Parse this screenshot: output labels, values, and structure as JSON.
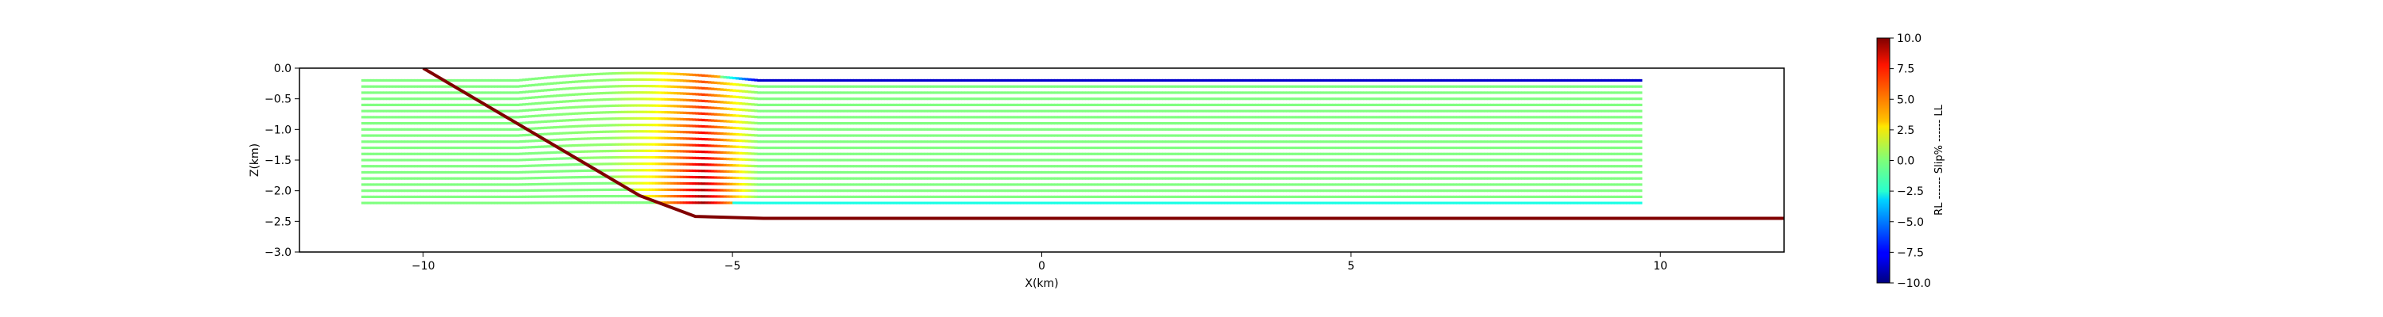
{
  "chart_data": {
    "type": "scatter",
    "title": "",
    "xlabel": "X(km)",
    "ylabel": "Z(km)",
    "xlim": [
      -12,
      12
    ],
    "ylim": [
      -3.0,
      0.0
    ],
    "x_ticks": [
      -10,
      -5,
      0,
      5,
      10
    ],
    "x_tick_labels": [
      "−10",
      "−5",
      "0",
      "5",
      "10"
    ],
    "y_ticks": [
      0.0,
      -0.5,
      -1.0,
      -1.5,
      -2.0,
      -2.5,
      -3.0
    ],
    "y_tick_labels": [
      "0.0",
      "−0.5",
      "−1.0",
      "−1.5",
      "−2.0",
      "−2.5",
      "−3.0"
    ],
    "grid": false,
    "fault_trace": {
      "color": "#800000",
      "points": [
        [
          -10.0,
          0.0
        ],
        [
          -6.5,
          -2.08
        ],
        [
          -5.6,
          -2.42
        ],
        [
          -4.5,
          -2.45
        ],
        [
          12.0,
          -2.45
        ]
      ]
    },
    "particle_layers": {
      "x_start": -11.0,
      "x_end": 9.7,
      "depths": [
        -0.2,
        -0.3,
        -0.4,
        -0.5,
        -0.6,
        -0.7,
        -0.8,
        -0.9,
        -1.0,
        -1.1,
        -1.2,
        -1.3,
        -1.4,
        -1.5,
        -1.6,
        -1.7,
        -1.8,
        -1.9,
        -2.0,
        -2.1,
        -2.2
      ],
      "slip_profile_x": [
        -8.5,
        -7.0,
        -6.3,
        -5.9,
        -5.5,
        -5.0,
        -4.6
      ],
      "slip_profile_value": [
        0.0,
        0.5,
        3.0,
        6.0,
        9.5,
        4.0,
        0.0
      ],
      "upper_layer_slip": -8.5,
      "bottom_layer_slip": -2.0
    },
    "colorbar": {
      "label": "RL ------ Slip% ------ LL",
      "vmin": -10.0,
      "vmax": 10.0,
      "ticks": [
        10.0,
        7.5,
        5.0,
        2.5,
        0.0,
        -2.5,
        -5.0,
        -7.5,
        -10.0
      ],
      "tick_labels": [
        "10.0",
        "7.5",
        "5.0",
        "2.5",
        "0.0",
        "−2.5",
        "−5.0",
        "−7.5",
        "−10.0"
      ],
      "colormap": "jet"
    }
  }
}
